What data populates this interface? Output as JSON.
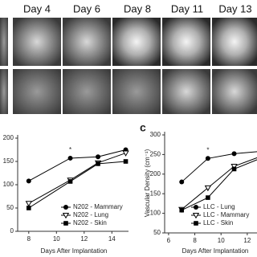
{
  "figure": {
    "day_labels": [
      "Day 4",
      "Day 6",
      "Day 8",
      "Day 11",
      "Day 13"
    ],
    "panel_label": "c"
  },
  "chart_data": [
    {
      "type": "line",
      "x_label": "Days After Implantation",
      "annotation": "*",
      "xlim": [
        7.2,
        15.2
      ],
      "xticks": [
        8,
        10,
        12,
        14
      ],
      "ylim": [
        0,
        200
      ],
      "yticks": [
        0,
        50,
        100,
        150,
        200
      ],
      "series": [
        {
          "name": "N202 - Mammary",
          "color": "#000000",
          "marker": "circle",
          "x": [
            8,
            11,
            13,
            15
          ],
          "values": [
            108,
            157,
            160,
            175
          ]
        },
        {
          "name": "N202 - Lung",
          "color": "#000000",
          "marker": "triangle-open",
          "x": [
            8,
            11,
            13,
            15
          ],
          "values": [
            60,
            110,
            147,
            168
          ]
        },
        {
          "name": "N202 - Skin",
          "color": "#000000",
          "marker": "square",
          "x": [
            8,
            11,
            13,
            15
          ],
          "values": [
            50,
            107,
            145,
            150
          ]
        }
      ]
    },
    {
      "type": "line",
      "x_label": "Days After Implantation",
      "y_label": "Vascular Density (cm⁻¹)",
      "annotation": "*",
      "xlim": [
        5.7,
        13.6
      ],
      "xticks": [
        6,
        8,
        10,
        12
      ],
      "ylim": [
        50,
        300
      ],
      "yticks": [
        50,
        100,
        150,
        200,
        250,
        300
      ],
      "series": [
        {
          "name": "LLC - Lung",
          "color": "#000000",
          "marker": "circle",
          "x": [
            7,
            9,
            11,
            13
          ],
          "values": [
            180,
            240,
            252,
            258
          ]
        },
        {
          "name": "LLC - Mammary",
          "color": "#000000",
          "marker": "triangle-open",
          "x": [
            7,
            9,
            11,
            13
          ],
          "values": [
            110,
            165,
            220,
            245
          ]
        },
        {
          "name": "LLC - Skin",
          "color": "#000000",
          "marker": "square",
          "x": [
            7,
            9,
            11,
            13
          ],
          "values": [
            108,
            140,
            213,
            240
          ]
        }
      ]
    }
  ]
}
